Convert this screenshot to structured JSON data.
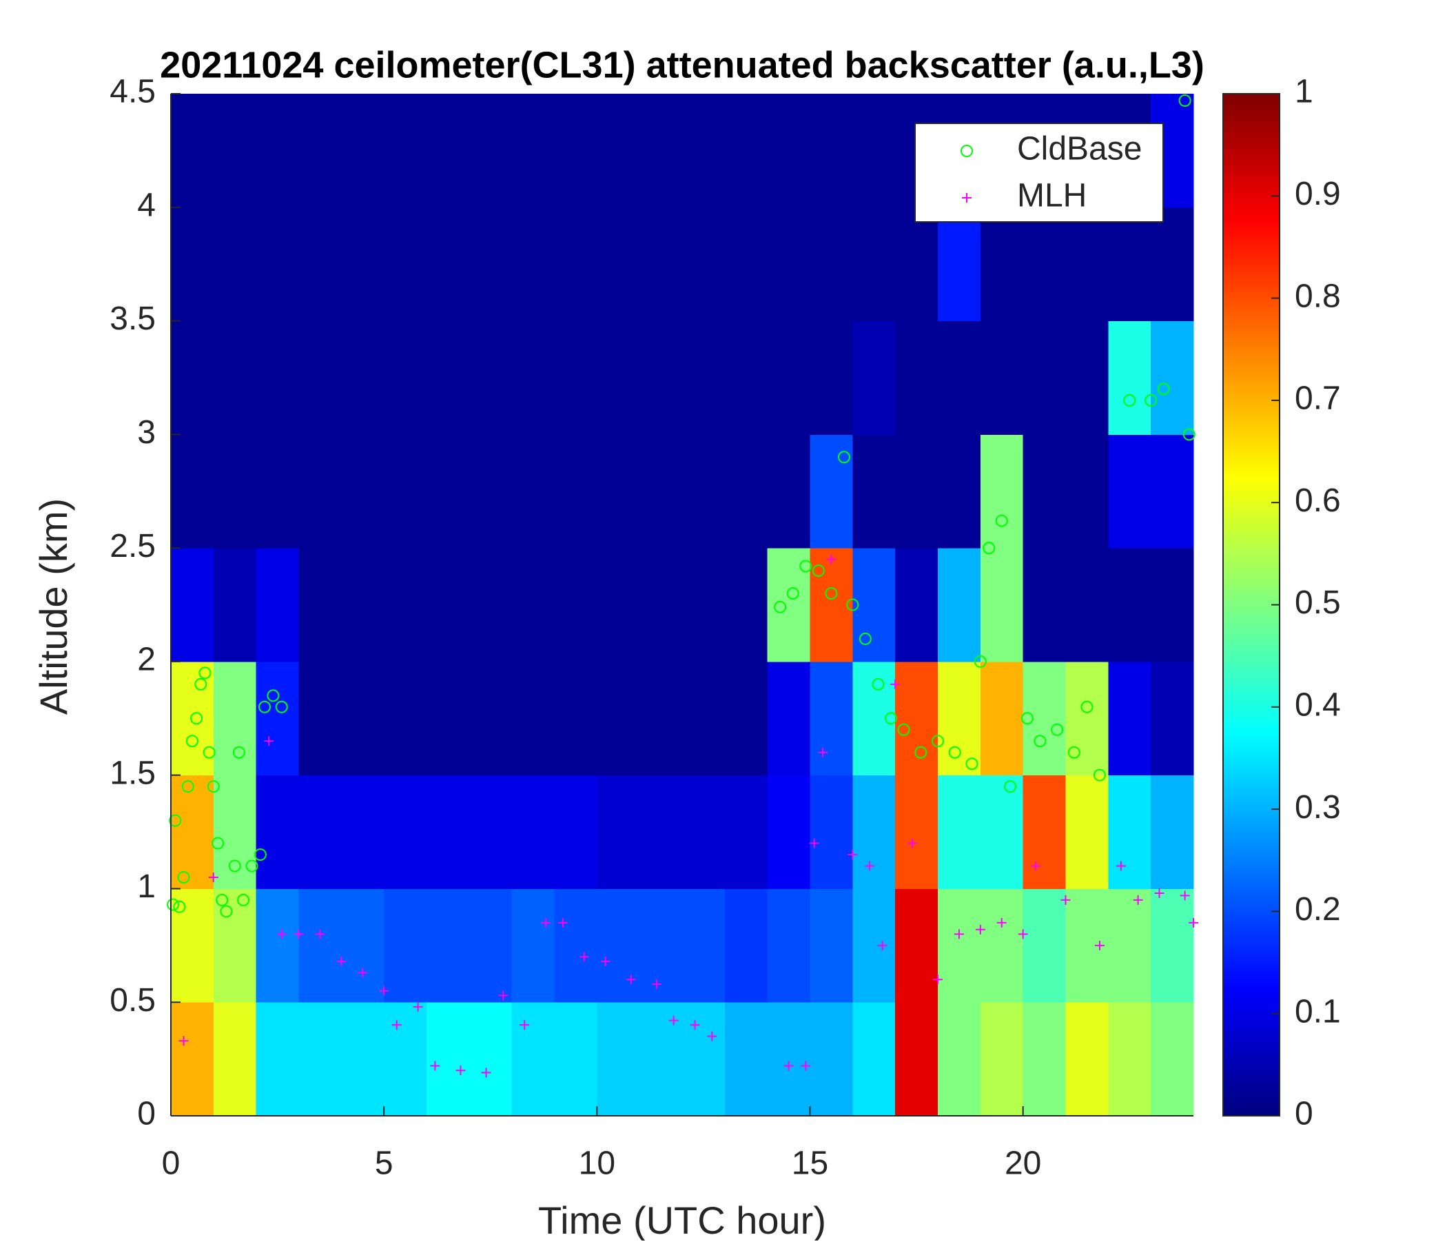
{
  "chart_data": {
    "type": "heatmap",
    "title": "20211024 ceilometer(CL31) attenuated backscatter (a.u.,L3)",
    "xlabel": "Time (UTC hour)",
    "ylabel": "Altitude (km)",
    "xlim": [
      0,
      24
    ],
    "ylim": [
      0,
      4.5
    ],
    "xticks": [
      0,
      5,
      10,
      15,
      20
    ],
    "yticks": [
      0,
      0.5,
      1,
      1.5,
      2,
      2.5,
      3,
      3.5,
      4,
      4.5
    ],
    "colormap": "jet",
    "xbins": [
      0,
      1,
      2,
      3,
      4,
      5,
      6,
      7,
      8,
      9,
      10,
      11,
      12,
      13,
      14,
      15,
      16,
      17,
      18,
      19,
      20,
      21,
      22,
      23,
      24
    ],
    "ybins": [
      0,
      0.5,
      1,
      1.5,
      2,
      2.5,
      3,
      3.5,
      4,
      4.5
    ],
    "z": [
      [
        0.7,
        0.6,
        0.35,
        0.35,
        0.35,
        0.35,
        0.38,
        0.38,
        0.35,
        0.35,
        0.33,
        0.33,
        0.33,
        0.3,
        0.3,
        0.3,
        0.35,
        0.9,
        0.5,
        0.55,
        0.5,
        0.6,
        0.55,
        0.5
      ],
      [
        0.6,
        0.55,
        0.25,
        0.22,
        0.22,
        0.2,
        0.2,
        0.2,
        0.22,
        0.2,
        0.2,
        0.2,
        0.2,
        0.18,
        0.2,
        0.22,
        0.3,
        0.9,
        0.5,
        0.5,
        0.45,
        0.5,
        0.5,
        0.45
      ],
      [
        0.7,
        0.5,
        0.1,
        0.1,
        0.1,
        0.1,
        0.1,
        0.1,
        0.1,
        0.1,
        0.08,
        0.08,
        0.08,
        0.08,
        0.12,
        0.18,
        0.3,
        0.8,
        0.4,
        0.4,
        0.8,
        0.6,
        0.35,
        0.3
      ],
      [
        0.6,
        0.5,
        0.15,
        0.02,
        0.02,
        0.02,
        0.02,
        0.02,
        0.02,
        0.02,
        0.02,
        0.02,
        0.02,
        0.02,
        0.1,
        0.2,
        0.4,
        0.8,
        0.6,
        0.7,
        0.5,
        0.55,
        0.1,
        0.05
      ],
      [
        0.1,
        0.05,
        0.1,
        0.02,
        0.02,
        0.02,
        0.02,
        0.02,
        0.02,
        0.02,
        0.02,
        0.02,
        0.02,
        0.02,
        0.5,
        0.8,
        0.2,
        0.05,
        0.3,
        0.5,
        0.02,
        0.02,
        0.02,
        0.02
      ],
      [
        0.02,
        0.02,
        0.02,
        0.02,
        0.02,
        0.02,
        0.02,
        0.02,
        0.02,
        0.02,
        0.02,
        0.02,
        0.02,
        0.02,
        0.02,
        0.2,
        0.02,
        0.02,
        0.02,
        0.5,
        0.02,
        0.02,
        0.1,
        0.1
      ],
      [
        0.02,
        0.02,
        0.02,
        0.02,
        0.02,
        0.02,
        0.02,
        0.02,
        0.02,
        0.02,
        0.02,
        0.02,
        0.02,
        0.02,
        0.02,
        0.02,
        0.05,
        0.02,
        0.02,
        0.02,
        0.02,
        0.02,
        0.4,
        0.3
      ],
      [
        0.02,
        0.02,
        0.02,
        0.02,
        0.02,
        0.02,
        0.02,
        0.02,
        0.02,
        0.02,
        0.02,
        0.02,
        0.02,
        0.02,
        0.02,
        0.02,
        0.02,
        0.02,
        0.15,
        0.02,
        0.02,
        0.02,
        0.02,
        0.02
      ],
      [
        0.02,
        0.02,
        0.02,
        0.02,
        0.02,
        0.02,
        0.02,
        0.02,
        0.02,
        0.02,
        0.02,
        0.02,
        0.02,
        0.02,
        0.02,
        0.02,
        0.02,
        0.02,
        0.02,
        0.02,
        0.02,
        0.02,
        0.02,
        0.1
      ]
    ],
    "colorbar": {
      "lim": [
        0,
        1
      ],
      "ticks": [
        0,
        0.1,
        0.2,
        0.3,
        0.4,
        0.5,
        0.6,
        0.7,
        0.8,
        0.9,
        1
      ]
    },
    "legend": "upper right",
    "overlays": [
      {
        "type": "scatter",
        "name": "CldBase",
        "color": "#00ff00",
        "marker": "circle",
        "x": [
          0.05,
          0.1,
          0.2,
          0.3,
          0.4,
          0.5,
          0.6,
          0.7,
          0.8,
          0.9,
          1.0,
          1.1,
          1.2,
          1.3,
          1.5,
          1.6,
          1.7,
          1.9,
          2.1,
          2.2,
          2.4,
          2.6,
          14.3,
          14.6,
          14.9,
          15.2,
          15.5,
          15.8,
          16.0,
          16.3,
          16.6,
          16.9,
          17.2,
          17.6,
          18.0,
          18.4,
          18.8,
          19.0,
          19.2,
          19.5,
          19.7,
          20.1,
          20.4,
          20.8,
          21.2,
          21.5,
          21.8,
          22.5,
          23.0,
          23.3,
          23.8,
          23.9
        ],
        "y": [
          0.93,
          1.3,
          0.92,
          1.05,
          1.45,
          1.65,
          1.75,
          1.9,
          1.95,
          1.6,
          1.45,
          1.2,
          0.95,
          0.9,
          1.1,
          1.6,
          0.95,
          1.1,
          1.15,
          1.8,
          1.85,
          1.8,
          2.24,
          2.3,
          2.42,
          2.4,
          2.3,
          2.9,
          2.25,
          2.1,
          1.9,
          1.75,
          1.7,
          1.6,
          1.65,
          1.6,
          1.55,
          2.0,
          2.5,
          2.62,
          1.45,
          1.75,
          1.65,
          1.7,
          1.6,
          1.8,
          1.5,
          3.15,
          3.15,
          3.2,
          4.47,
          3.0
        ]
      },
      {
        "type": "scatter",
        "name": "MLH",
        "color": "#ff00ff",
        "marker": "plus",
        "x": [
          0.3,
          1.0,
          2.3,
          2.6,
          3.0,
          3.5,
          4.0,
          4.5,
          5.0,
          5.3,
          5.8,
          6.2,
          6.8,
          7.4,
          7.8,
          8.3,
          8.8,
          9.2,
          9.7,
          10.2,
          10.8,
          11.4,
          11.8,
          12.3,
          12.7,
          14.5,
          14.9,
          15.1,
          15.3,
          15.5,
          16.0,
          16.4,
          16.7,
          17.0,
          17.4,
          18.0,
          18.5,
          19.0,
          19.5,
          20.0,
          20.3,
          21.0,
          21.8,
          22.3,
          22.7,
          23.2,
          23.8,
          24.0
        ],
        "y": [
          0.33,
          1.05,
          1.65,
          0.8,
          0.8,
          0.8,
          0.68,
          0.63,
          0.55,
          0.4,
          0.48,
          0.22,
          0.2,
          0.19,
          0.53,
          0.4,
          0.85,
          0.85,
          0.7,
          0.68,
          0.6,
          0.58,
          0.42,
          0.4,
          0.35,
          0.22,
          0.22,
          1.2,
          1.6,
          2.45,
          1.15,
          1.1,
          0.75,
          1.9,
          1.2,
          0.6,
          0.8,
          0.82,
          0.85,
          0.8,
          1.1,
          0.95,
          0.75,
          1.1,
          0.95,
          0.98,
          0.97,
          0.85
        ]
      }
    ]
  }
}
